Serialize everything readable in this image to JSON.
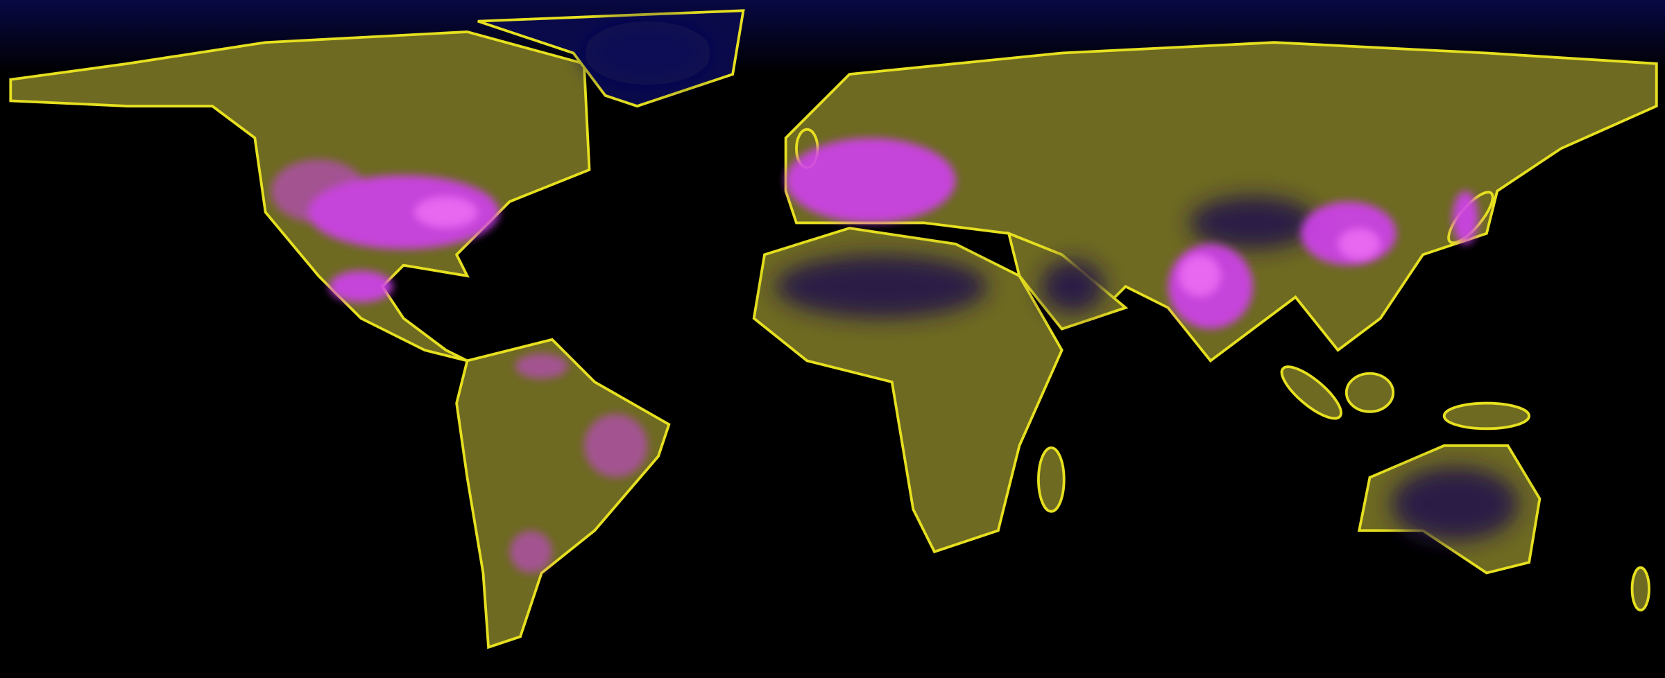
{
  "map": {
    "colors": {
      "ocean": "#000000",
      "polar_ice": "#0a0a4a",
      "land_low": "#3a3418",
      "land_mid": "#6e6a22",
      "land_coast": "#e6e020",
      "desert": "#2a1a45",
      "dense": "#d040f0",
      "dense_core": "#ff80ff"
    }
  }
}
